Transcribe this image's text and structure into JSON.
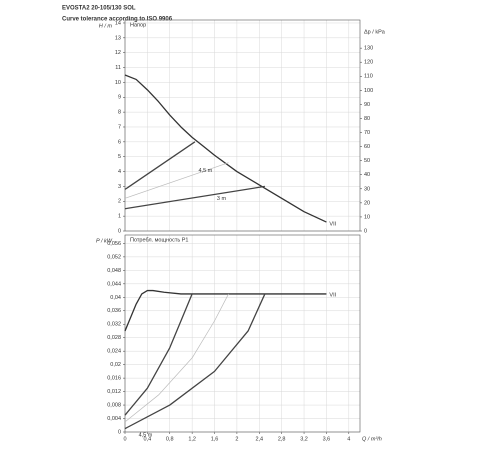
{
  "title": "EVOSTA2 20-105/130 SOL",
  "subtitle": "Curve tolerance according to ISO 9906",
  "chart_data": [
    {
      "type": "line",
      "ylabel": "H / m",
      "y2label": "Δp / kPa",
      "annotation": "Напор",
      "xlim": [
        0,
        4.2
      ],
      "xticks": [
        0,
        0.4,
        0.8,
        1.2,
        1.6,
        2,
        2.4,
        2.8,
        3.2,
        3.6,
        4
      ],
      "ylim": [
        0,
        14.2
      ],
      "yticks": [
        0,
        1,
        2,
        3,
        4,
        5,
        6,
        7,
        8,
        9,
        10,
        11,
        12,
        13,
        14
      ],
      "y2lim": [
        0,
        150
      ],
      "y2ticks": [
        0,
        10,
        20,
        30,
        40,
        50,
        60,
        70,
        80,
        90,
        100,
        110,
        120,
        130
      ],
      "grid": true,
      "series": [
        {
          "name": "VII",
          "color": "#333333",
          "x": [
            0,
            0.2,
            0.4,
            0.6,
            0.8,
            1,
            1.2,
            1.4,
            1.6,
            2,
            2.4,
            2.8,
            3.2,
            3.6
          ],
          "values": [
            10.5,
            10.2,
            9.5,
            8.7,
            7.8,
            7,
            6.3,
            5.7,
            5.1,
            4,
            3.1,
            2.2,
            1.3,
            0.6
          ]
        },
        {
          "color": "#444444",
          "x": [
            0,
            1.25
          ],
          "values": [
            2.8,
            6
          ]
        },
        {
          "name": "4,5 m",
          "color": "#bbbbbb",
          "x": [
            0,
            1.85
          ],
          "values": [
            2.2,
            4.6
          ]
        },
        {
          "name": "3 m",
          "color": "#444444",
          "x": [
            0,
            2.5
          ],
          "values": [
            1.5,
            3
          ]
        }
      ]
    },
    {
      "type": "line",
      "ylabel": "P / kW",
      "xlabel": "Q / m³/h",
      "annotation": "Потребл. мощность P1",
      "xlim": [
        0,
        4.2
      ],
      "xticks": [
        0,
        {
          "value": 0.4,
          "label": "0,4"
        },
        {
          "value": 0.8,
          "label": "0,8"
        },
        {
          "value": 1.2,
          "label": "1,2"
        },
        {
          "value": 1.6,
          "label": "1,6"
        },
        2,
        {
          "value": 2.4,
          "label": "2,4"
        },
        {
          "value": 2.8,
          "label": "2,8"
        },
        {
          "value": 3.2,
          "label": "3,2"
        },
        {
          "value": 3.6,
          "label": "3,6"
        },
        4
      ],
      "ylim": [
        0,
        0.0585
      ],
      "yticks": [
        0,
        {
          "value": 0.004,
          "label": "0,004"
        },
        {
          "value": 0.008,
          "label": "0,008"
        },
        {
          "value": 0.012,
          "label": "0,012"
        },
        {
          "value": 0.016,
          "label": "0,016"
        },
        {
          "value": 0.02,
          "label": "0,02"
        },
        {
          "value": 0.024,
          "label": "0,024"
        },
        {
          "value": 0.028,
          "label": "0,028"
        },
        {
          "value": 0.032,
          "label": "0,032"
        },
        {
          "value": 0.036,
          "label": "0,036"
        },
        {
          "value": 0.04,
          "label": "0,04"
        },
        {
          "value": 0.044,
          "label": "0,044"
        },
        {
          "value": 0.048,
          "label": "0,048"
        },
        {
          "value": 0.052,
          "label": "0,052"
        },
        {
          "value": 0.056,
          "label": "0,056"
        }
      ],
      "grid": true,
      "series": [
        {
          "name": "VII",
          "color": "#333333",
          "x": [
            0,
            0.1,
            0.2,
            0.3,
            0.4,
            0.5,
            0.7,
            1,
            1.5,
            2,
            2.5,
            3,
            3.6
          ],
          "values": [
            0.03,
            0.034,
            0.038,
            0.041,
            0.042,
            0.042,
            0.0415,
            0.041,
            0.041,
            0.041,
            0.041,
            0.041,
            0.041
          ]
        },
        {
          "color": "#444444",
          "x": [
            0,
            0.4,
            0.8,
            1,
            1.2
          ],
          "values": [
            0.005,
            0.013,
            0.025,
            0.033,
            0.041
          ]
        },
        {
          "name": "4,5 m",
          "color": "#bbbbbb",
          "x": [
            0,
            0.6,
            1.2,
            1.6,
            1.85
          ],
          "values": [
            0.003,
            0.011,
            0.022,
            0.033,
            0.041
          ]
        },
        {
          "name": "3 m",
          "color": "#444444",
          "x": [
            0,
            0.8,
            1.6,
            2.2,
            2.5
          ],
          "values": [
            0.001,
            0.008,
            0.018,
            0.03,
            0.041
          ]
        }
      ]
    }
  ]
}
